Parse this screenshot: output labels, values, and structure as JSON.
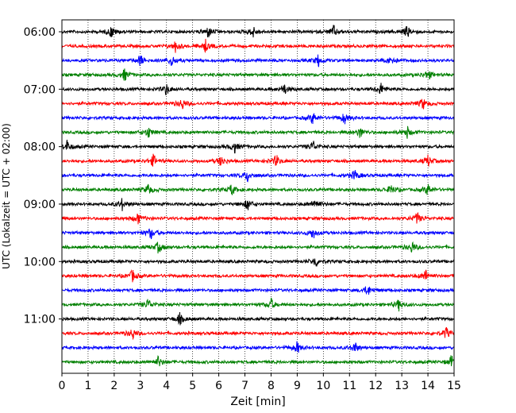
{
  "chart_data": {
    "type": "line",
    "title": "",
    "xlabel": "Zeit  [min]",
    "ylabel": "UTC (Lokalzeit = UTC + 02:00)",
    "xlim": [
      0,
      15
    ],
    "x_ticks": [
      "0",
      "1",
      "2",
      "3",
      "4",
      "5",
      "6",
      "7",
      "8",
      "9",
      "10",
      "11",
      "12",
      "13",
      "14",
      "15"
    ],
    "y_tick_labels": [
      "06:00",
      "07:00",
      "08:00",
      "09:00",
      "10:00",
      "11:00"
    ],
    "grid": "vertical dotted",
    "row_interval_minutes": 15,
    "trace_colors": [
      "#000000",
      "#ff0000",
      "#0000ff",
      "#008000"
    ],
    "traces": [
      {
        "start": "06:00",
        "color": "#000000",
        "events": [
          1.9,
          5.6,
          7.3,
          10.4,
          13.2
        ]
      },
      {
        "start": "06:15",
        "color": "#ff0000",
        "events": [
          4.35,
          5.5
        ]
      },
      {
        "start": "06:30",
        "color": "#0000ff",
        "events": [
          3.0,
          4.2,
          9.8,
          12.6
        ]
      },
      {
        "start": "06:45",
        "color": "#008000",
        "events": [
          2.4,
          14.0
        ]
      },
      {
        "start": "07:00",
        "color": "#000000",
        "events": [
          4.0,
          8.5,
          12.2
        ]
      },
      {
        "start": "07:15",
        "color": "#ff0000",
        "events": [
          4.6,
          13.8
        ]
      },
      {
        "start": "07:30",
        "color": "#0000ff",
        "events": [
          9.6,
          10.8
        ]
      },
      {
        "start": "07:45",
        "color": "#008000",
        "events": [
          3.3,
          11.4,
          13.2
        ]
      },
      {
        "start": "08:00",
        "color": "#000000",
        "events": [
          0.2,
          6.6,
          9.6
        ]
      },
      {
        "start": "08:15",
        "color": "#ff0000",
        "events": [
          3.5,
          6.1,
          8.2,
          14.0
        ]
      },
      {
        "start": "08:30",
        "color": "#0000ff",
        "events": [
          7.1,
          11.2
        ]
      },
      {
        "start": "08:45",
        "color": "#008000",
        "events": [
          3.3,
          6.5,
          12.6,
          14.0
        ]
      },
      {
        "start": "09:00",
        "color": "#000000",
        "events": [
          2.3,
          7.1,
          9.7
        ]
      },
      {
        "start": "09:15",
        "color": "#ff0000",
        "events": [
          2.9,
          13.6
        ]
      },
      {
        "start": "09:30",
        "color": "#0000ff",
        "events": [
          3.4,
          9.6
        ]
      },
      {
        "start": "09:45",
        "color": "#008000",
        "events": [
          3.7,
          13.4
        ]
      },
      {
        "start": "10:00",
        "color": "#000000",
        "events": [
          9.7
        ]
      },
      {
        "start": "10:15",
        "color": "#ff0000",
        "events": [
          2.7,
          13.9
        ]
      },
      {
        "start": "10:30",
        "color": "#0000ff",
        "events": [
          11.7
        ]
      },
      {
        "start": "10:45",
        "color": "#008000",
        "events": [
          3.3,
          8.0,
          12.9
        ]
      },
      {
        "start": "11:00",
        "color": "#000000",
        "events": [
          4.5
        ]
      },
      {
        "start": "11:15",
        "color": "#ff0000",
        "events": [
          2.7,
          14.7
        ]
      },
      {
        "start": "11:30",
        "color": "#0000ff",
        "events": [
          9.0,
          11.2
        ]
      },
      {
        "start": "11:45",
        "color": "#008000",
        "events": [
          3.7,
          14.9
        ]
      }
    ]
  }
}
